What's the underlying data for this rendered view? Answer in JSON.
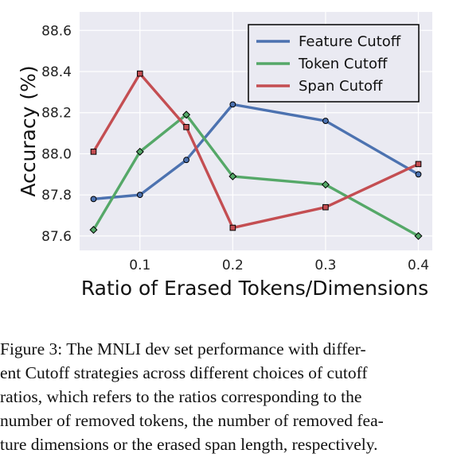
{
  "chart_data": {
    "type": "line",
    "xlabel": "Ratio of Erased Tokens/Dimensions",
    "ylabel": "Accuracy (%)",
    "xlim": [
      0.035,
      0.415
    ],
    "ylim": [
      87.53,
      88.69
    ],
    "xticks": [
      0.1,
      0.2,
      0.3,
      0.4
    ],
    "xtick_labels": [
      "0.1",
      "0.2",
      "0.3",
      "0.4"
    ],
    "yticks": [
      87.6,
      87.8,
      88.0,
      88.2,
      88.4,
      88.6
    ],
    "ytick_labels": [
      "87.6",
      "87.8",
      "88.0",
      "88.2",
      "88.4",
      "88.6"
    ],
    "grid": true,
    "legend_position": "top-right",
    "series": [
      {
        "name": "Feature Cutoff",
        "color": "#4c72b0",
        "marker": "circle",
        "x": [
          0.05,
          0.1,
          0.15,
          0.2,
          0.3,
          0.4
        ],
        "y": [
          87.78,
          87.8,
          87.97,
          88.24,
          88.16,
          87.9
        ]
      },
      {
        "name": "Token Cutoff",
        "color": "#55a868",
        "marker": "diamond",
        "x": [
          0.05,
          0.1,
          0.15,
          0.2,
          0.3,
          0.4
        ],
        "y": [
          87.63,
          88.01,
          88.19,
          87.89,
          87.85,
          87.6
        ]
      },
      {
        "name": "Span Cutoff",
        "color": "#c44e52",
        "marker": "square",
        "x": [
          0.05,
          0.1,
          0.15,
          0.2,
          0.3,
          0.4
        ],
        "y": [
          88.01,
          88.39,
          88.13,
          87.64,
          87.74,
          87.95
        ]
      }
    ]
  },
  "caption": {
    "lines": [
      "Figure 3: The MNLI dev set performance with differ-",
      "ent Cutoff strategies across different choices of cutoff",
      "ratios, which refers to the ratios corresponding to the",
      "number of removed tokens, the number of removed fea-",
      "ture dimensions or the erased span length, respectively."
    ]
  }
}
